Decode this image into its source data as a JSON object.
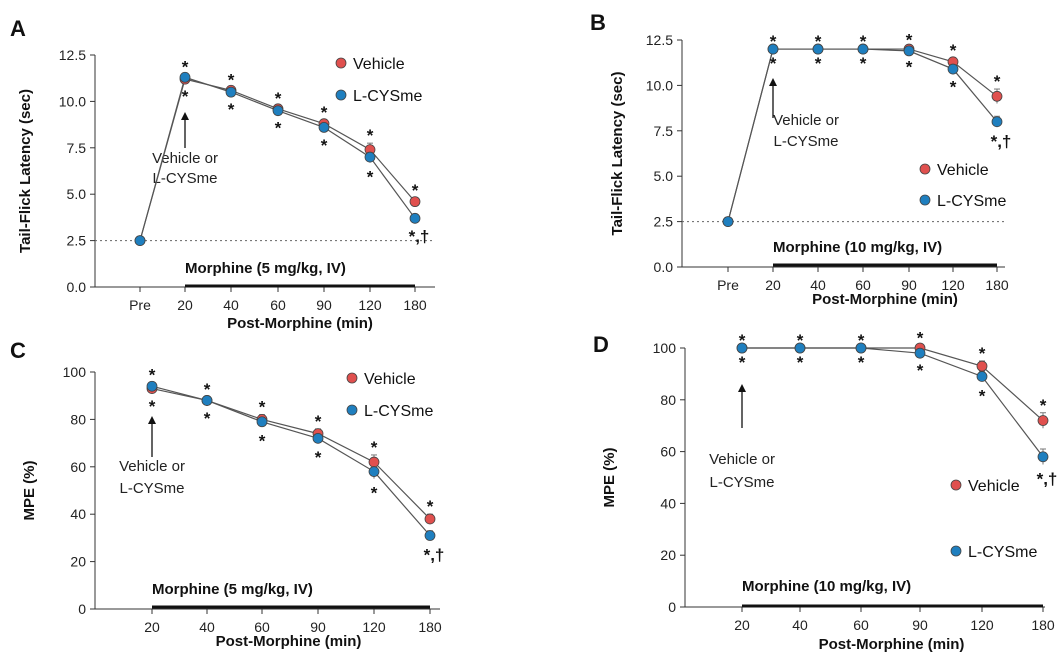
{
  "chart_data": [
    {
      "panel": "A",
      "type": "line",
      "categories": [
        "Pre",
        "20",
        "40",
        "60",
        "90",
        "120",
        "180"
      ],
      "ylabel": "Tail-Flick Latency (sec)",
      "xlabel": "Post-Morphine (min)",
      "ylim": [
        0,
        12.5
      ],
      "yticks": [
        "0.0",
        "2.5",
        "5.0",
        "7.5",
        "10.0",
        "12.5"
      ],
      "baseline": 2.5,
      "series": [
        {
          "name": "Vehicle",
          "color": "#e0504e",
          "values": [
            2.5,
            11.2,
            10.6,
            9.6,
            8.8,
            7.4,
            4.6
          ],
          "errors": [
            0,
            0.15,
            0.15,
            0.15,
            0.2,
            0.35,
            0.2
          ]
        },
        {
          "name": "L-CYSme",
          "color": "#1f7fbf",
          "values": [
            2.5,
            11.3,
            10.5,
            9.5,
            8.6,
            7.0,
            3.7
          ],
          "errors": [
            0,
            0.15,
            0.15,
            0.15,
            0.2,
            0.3,
            0.2
          ]
        }
      ],
      "stars_above": [
        false,
        true,
        true,
        true,
        true,
        true,
        true
      ],
      "stars_below": [
        false,
        true,
        true,
        true,
        true,
        true,
        true
      ],
      "last_below_label": "*,†",
      "annotation": {
        "at": "20",
        "lines": [
          "Vehicle or",
          "L-CYSme"
        ]
      },
      "bracket": {
        "label": "Morphine (5 mg/kg, IV)",
        "from": "20",
        "to": "180"
      }
    },
    {
      "panel": "B",
      "type": "line",
      "categories": [
        "Pre",
        "20",
        "40",
        "60",
        "90",
        "120",
        "180"
      ],
      "ylabel": "Tail-Flick Latency (sec)",
      "xlabel": "Post-Morphine (min)",
      "ylim": [
        0,
        12.5
      ],
      "yticks": [
        "0.0",
        "2.5",
        "5.0",
        "7.5",
        "10.0",
        "12.5"
      ],
      "baseline": 2.5,
      "series": [
        {
          "name": "Vehicle",
          "color": "#e0504e",
          "values": [
            2.5,
            12.0,
            12.0,
            12.0,
            12.0,
            11.3,
            9.4
          ],
          "errors": [
            0,
            0,
            0,
            0,
            0.1,
            0.2,
            0.4
          ]
        },
        {
          "name": "L-CYSme",
          "color": "#1f7fbf",
          "values": [
            2.5,
            12.0,
            12.0,
            12.0,
            11.9,
            10.9,
            8.0
          ],
          "errors": [
            0,
            0,
            0,
            0,
            0.1,
            0.2,
            0.3
          ]
        }
      ],
      "stars_above": [
        false,
        true,
        true,
        true,
        true,
        true,
        true
      ],
      "stars_below": [
        false,
        true,
        true,
        true,
        true,
        true,
        true
      ],
      "last_below_label": "*,†",
      "annotation": {
        "at": "20",
        "lines": [
          "Vehicle or",
          "L-CYSme"
        ]
      },
      "bracket": {
        "label": "Morphine (10 mg/kg, IV)",
        "from": "20",
        "to": "180"
      }
    },
    {
      "panel": "C",
      "type": "line",
      "categories": [
        "20",
        "40",
        "60",
        "90",
        "120",
        "180"
      ],
      "ylabel": "MPE (%)",
      "xlabel": "Post-Morphine (min)",
      "ylim": [
        0,
        100
      ],
      "yticks": [
        "0",
        "20",
        "40",
        "60",
        "80",
        "100"
      ],
      "series": [
        {
          "name": "Vehicle",
          "color": "#e0504e",
          "values": [
            93,
            88,
            80,
            74,
            62,
            38
          ],
          "errors": [
            1.5,
            1.5,
            2,
            2,
            3,
            2
          ]
        },
        {
          "name": "L-CYSme",
          "color": "#1f7fbf",
          "values": [
            94,
            88,
            79,
            72,
            58,
            31
          ],
          "errors": [
            1.5,
            1.5,
            2,
            2,
            3,
            2
          ]
        }
      ],
      "stars_above": [
        true,
        true,
        true,
        true,
        true,
        true
      ],
      "stars_below": [
        true,
        true,
        true,
        true,
        true,
        true
      ],
      "last_below_label": "*,†",
      "annotation": {
        "at": "20",
        "lines": [
          "Vehicle or",
          "L-CYSme"
        ]
      },
      "bracket": {
        "label": "Morphine (5 mg/kg, IV)",
        "from": "20",
        "to": "180"
      }
    },
    {
      "panel": "D",
      "type": "line",
      "categories": [
        "20",
        "40",
        "60",
        "90",
        "120",
        "180"
      ],
      "ylabel": "MPE (%)",
      "xlabel": "Post-Morphine (min)",
      "ylim": [
        0,
        100
      ],
      "yticks": [
        "0",
        "20",
        "40",
        "60",
        "80",
        "100"
      ],
      "series": [
        {
          "name": "Vehicle",
          "color": "#e0504e",
          "values": [
            100,
            100,
            100,
            100,
            93,
            72
          ],
          "errors": [
            0,
            0,
            0,
            1,
            2,
            3
          ]
        },
        {
          "name": "L-CYSme",
          "color": "#1f7fbf",
          "values": [
            100,
            100,
            100,
            98,
            89,
            58
          ],
          "errors": [
            0,
            0,
            0,
            1,
            2,
            3
          ]
        }
      ],
      "stars_above": [
        true,
        true,
        true,
        true,
        true,
        true
      ],
      "stars_below": [
        true,
        true,
        true,
        true,
        true,
        true
      ],
      "last_below_label": "*,†",
      "annotation": {
        "at": "20",
        "lines": [
          "Vehicle or",
          "L-CYSme"
        ]
      },
      "bracket": {
        "label": "Morphine (10 mg/kg, IV)",
        "from": "20",
        "to": "180"
      }
    }
  ]
}
